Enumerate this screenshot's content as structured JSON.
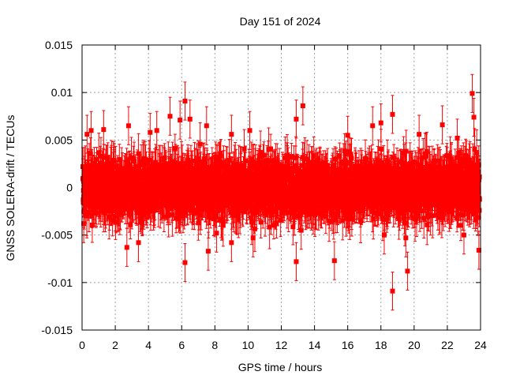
{
  "chart_data": {
    "type": "scatter",
    "title": "Day 151 of 2024",
    "xlabel": "GPS time / hours",
    "ylabel": "GNSS SOLERA-drift / TECUs",
    "xlim": [
      0,
      24
    ],
    "ylim": [
      -0.015,
      0.015
    ],
    "xticks": [
      0,
      2,
      4,
      6,
      8,
      10,
      12,
      14,
      16,
      18,
      20,
      22,
      24
    ],
    "xtick_labels": [
      "0",
      "2",
      "4",
      "6",
      "8",
      "10",
      "12",
      "14",
      "16",
      "18",
      "20",
      "22",
      "24"
    ],
    "yticks": [
      -0.015,
      -0.01,
      -0.005,
      0,
      0.005,
      0.01,
      0.015
    ],
    "ytick_labels": [
      "-0.015",
      "-0.01",
      "-0.005",
      "0",
      "0.005",
      "0.01",
      "0.015"
    ],
    "grid": true,
    "series_color": "#ff0000",
    "marker": "square",
    "error_bars": true,
    "typical_error": 0.002,
    "notable_points": [
      {
        "x": 0.05,
        "y": 0.0022
      },
      {
        "x": 0.1,
        "y": -0.0038
      },
      {
        "x": 0.3,
        "y": 0.0056
      },
      {
        "x": 0.55,
        "y": 0.006
      },
      {
        "x": 1.3,
        "y": 0.0061
      },
      {
        "x": 2.8,
        "y": 0.0065
      },
      {
        "x": 2.7,
        "y": -0.0063
      },
      {
        "x": 3.4,
        "y": -0.0058
      },
      {
        "x": 4.1,
        "y": 0.0058
      },
      {
        "x": 4.5,
        "y": 0.006
      },
      {
        "x": 5.3,
        "y": 0.0075
      },
      {
        "x": 5.9,
        "y": 0.0071
      },
      {
        "x": 6.2,
        "y": 0.0091
      },
      {
        "x": 6.2,
        "y": -0.0079
      },
      {
        "x": 6.5,
        "y": 0.0072
      },
      {
        "x": 7.5,
        "y": 0.0065
      },
      {
        "x": 7.6,
        "y": -0.0067
      },
      {
        "x": 8.1,
        "y": -0.0048
      },
      {
        "x": 9.0,
        "y": 0.0056
      },
      {
        "x": 9.0,
        "y": -0.0058
      },
      {
        "x": 10.1,
        "y": 0.006
      },
      {
        "x": 10.3,
        "y": -0.0053
      },
      {
        "x": 12.9,
        "y": 0.0072
      },
      {
        "x": 12.9,
        "y": -0.0078
      },
      {
        "x": 13.3,
        "y": 0.0086
      },
      {
        "x": 13.2,
        "y": -0.0045
      },
      {
        "x": 15.2,
        "y": -0.0077
      },
      {
        "x": 16.0,
        "y": 0.0055
      },
      {
        "x": 17.5,
        "y": 0.0065
      },
      {
        "x": 18.0,
        "y": 0.0068
      },
      {
        "x": 18.2,
        "y": -0.005
      },
      {
        "x": 18.7,
        "y": 0.0077
      },
      {
        "x": 18.7,
        "y": -0.0109
      },
      {
        "x": 19.5,
        "y": -0.0053
      },
      {
        "x": 19.6,
        "y": -0.0088
      },
      {
        "x": 20.3,
        "y": 0.0056
      },
      {
        "x": 21.7,
        "y": 0.0066
      },
      {
        "x": 22.6,
        "y": 0.0052
      },
      {
        "x": 23.0,
        "y": -0.005
      },
      {
        "x": 23.5,
        "y": 0.0099
      },
      {
        "x": 23.6,
        "y": 0.0074
      },
      {
        "x": 23.9,
        "y": -0.0066
      }
    ]
  }
}
